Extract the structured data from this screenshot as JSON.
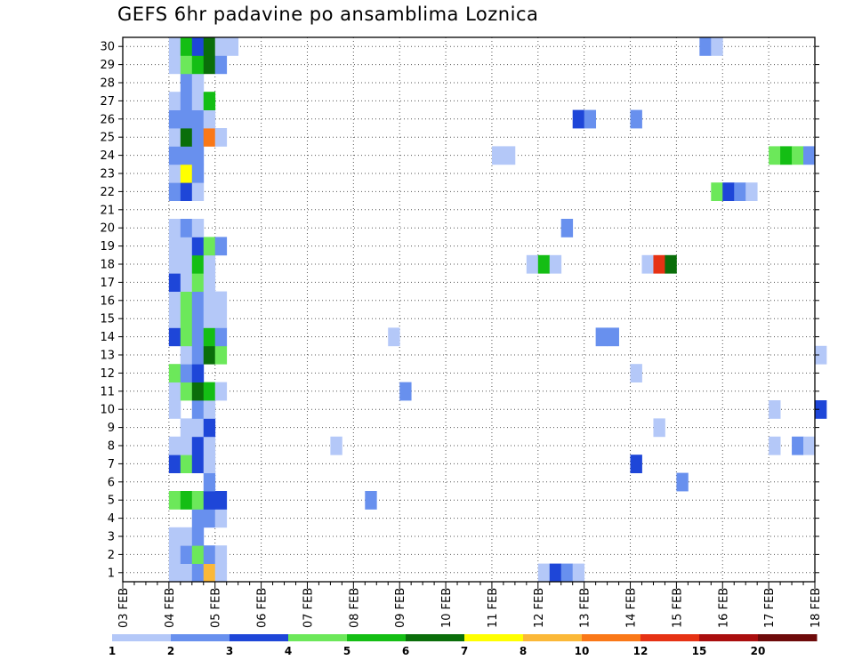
{
  "chart_data": {
    "type": "heatmap",
    "title": "GEFS 6hr padavine po ansamblima Loznica",
    "xlabel": "",
    "ylabel": "",
    "x_tick_labels": [
      "03 FEB",
      "04 FEB",
      "05 FEB",
      "06 FEB",
      "07 FEB",
      "08 FEB",
      "09 FEB",
      "10 FEB",
      "11 FEB",
      "12 FEB",
      "13 FEB",
      "14 FEB",
      "15 FEB",
      "16 FEB",
      "17 FEB",
      "18 FEB"
    ],
    "x_start": "03 FEB 00Z",
    "step_hours": 6,
    "ensemble_members": [
      1,
      2,
      3,
      4,
      5,
      6,
      7,
      8,
      9,
      10,
      11,
      12,
      13,
      14,
      15,
      16,
      17,
      18,
      19,
      20,
      21,
      22,
      23,
      24,
      25,
      26,
      27,
      28,
      29,
      30
    ],
    "grid": true,
    "colorbar": {
      "position": "bottom",
      "boundaries": [
        "1",
        "2",
        "3",
        "4",
        "5",
        "6",
        "7",
        "8",
        "10",
        "12",
        "15",
        "20"
      ],
      "colors": [
        "#b4c8f8",
        "#6890ee",
        "#1e46d8",
        "#6ce85a",
        "#14be14",
        "#0a6e0a",
        "#ffff00",
        "#fbb838",
        "#fa7818",
        "#e63214",
        "#aa0e0e",
        "#6e0a0a"
      ]
    },
    "cells": [
      [
        1,
        4,
        1
      ],
      [
        1,
        5,
        1
      ],
      [
        1,
        6,
        2
      ],
      [
        1,
        7,
        8
      ],
      [
        1,
        8,
        1
      ],
      [
        1,
        36,
        1
      ],
      [
        1,
        37,
        3
      ],
      [
        1,
        38,
        2
      ],
      [
        1,
        39,
        1
      ],
      [
        2,
        4,
        1
      ],
      [
        2,
        5,
        2
      ],
      [
        2,
        6,
        4
      ],
      [
        2,
        7,
        2
      ],
      [
        2,
        8,
        1
      ],
      [
        3,
        4,
        1
      ],
      [
        3,
        5,
        1
      ],
      [
        3,
        6,
        2
      ],
      [
        4,
        6,
        2
      ],
      [
        4,
        7,
        2
      ],
      [
        4,
        8,
        1
      ],
      [
        5,
        4,
        4
      ],
      [
        5,
        5,
        5
      ],
      [
        5,
        6,
        4
      ],
      [
        5,
        7,
        3
      ],
      [
        5,
        8,
        3
      ],
      [
        5,
        21,
        2
      ],
      [
        6,
        7,
        2
      ],
      [
        6,
        48,
        2
      ],
      [
        7,
        4,
        3
      ],
      [
        7,
        5,
        4
      ],
      [
        7,
        6,
        3
      ],
      [
        7,
        7,
        1
      ],
      [
        7,
        44,
        3
      ],
      [
        8,
        4,
        1
      ],
      [
        8,
        5,
        1
      ],
      [
        8,
        6,
        3
      ],
      [
        8,
        7,
        1
      ],
      [
        8,
        18,
        1
      ],
      [
        8,
        56,
        1
      ],
      [
        8,
        58,
        2
      ],
      [
        8,
        59,
        1
      ],
      [
        9,
        5,
        1
      ],
      [
        9,
        6,
        1
      ],
      [
        9,
        7,
        3
      ],
      [
        9,
        46,
        1
      ],
      [
        10,
        4,
        1
      ],
      [
        10,
        6,
        2
      ],
      [
        10,
        7,
        1
      ],
      [
        10,
        56,
        1
      ],
      [
        10,
        60,
        3
      ],
      [
        11,
        4,
        1
      ],
      [
        11,
        5,
        4
      ],
      [
        11,
        6,
        6
      ],
      [
        11,
        7,
        5
      ],
      [
        11,
        8,
        1
      ],
      [
        11,
        24,
        2
      ],
      [
        12,
        4,
        4
      ],
      [
        12,
        5,
        2
      ],
      [
        12,
        6,
        3
      ],
      [
        12,
        44,
        1
      ],
      [
        13,
        5,
        1
      ],
      [
        13,
        6,
        2
      ],
      [
        13,
        7,
        6
      ],
      [
        13,
        8,
        4
      ],
      [
        13,
        60,
        1
      ],
      [
        14,
        4,
        3
      ],
      [
        14,
        5,
        4
      ],
      [
        14,
        6,
        2
      ],
      [
        14,
        7,
        5
      ],
      [
        14,
        8,
        2
      ],
      [
        14,
        23,
        1
      ],
      [
        14,
        41,
        2
      ],
      [
        14,
        42,
        2
      ],
      [
        15,
        4,
        1
      ],
      [
        15,
        5,
        4
      ],
      [
        15,
        6,
        2
      ],
      [
        15,
        7,
        1
      ],
      [
        15,
        8,
        1
      ],
      [
        16,
        4,
        1
      ],
      [
        16,
        5,
        4
      ],
      [
        16,
        6,
        2
      ],
      [
        16,
        7,
        1
      ],
      [
        16,
        8,
        1
      ],
      [
        17,
        4,
        3
      ],
      [
        17,
        5,
        1
      ],
      [
        17,
        6,
        4
      ],
      [
        17,
        7,
        1
      ],
      [
        18,
        4,
        1
      ],
      [
        18,
        5,
        1
      ],
      [
        18,
        6,
        5
      ],
      [
        18,
        7,
        1
      ],
      [
        18,
        35,
        1
      ],
      [
        18,
        36,
        5
      ],
      [
        18,
        37,
        1
      ],
      [
        18,
        45,
        1
      ],
      [
        18,
        46,
        10
      ],
      [
        18,
        47,
        6
      ],
      [
        19,
        4,
        1
      ],
      [
        19,
        5,
        1
      ],
      [
        19,
        6,
        3
      ],
      [
        19,
        7,
        4
      ],
      [
        19,
        8,
        2
      ],
      [
        20,
        4,
        1
      ],
      [
        20,
        5,
        2
      ],
      [
        20,
        6,
        1
      ],
      [
        20,
        38,
        2
      ],
      [
        22,
        4,
        2
      ],
      [
        22,
        5,
        3
      ],
      [
        22,
        6,
        1
      ],
      [
        22,
        51,
        4
      ],
      [
        22,
        52,
        3
      ],
      [
        22,
        53,
        2
      ],
      [
        22,
        54,
        1
      ],
      [
        23,
        4,
        1
      ],
      [
        23,
        5,
        7
      ],
      [
        23,
        6,
        2
      ],
      [
        24,
        4,
        2
      ],
      [
        24,
        5,
        2
      ],
      [
        24,
        6,
        2
      ],
      [
        24,
        32,
        1
      ],
      [
        24,
        33,
        1
      ],
      [
        24,
        56,
        4
      ],
      [
        24,
        57,
        5
      ],
      [
        24,
        58,
        4
      ],
      [
        24,
        59,
        2
      ],
      [
        25,
        4,
        1
      ],
      [
        25,
        5,
        6
      ],
      [
        25,
        6,
        2
      ],
      [
        25,
        7,
        9
      ],
      [
        25,
        8,
        1
      ],
      [
        26,
        4,
        2
      ],
      [
        26,
        5,
        2
      ],
      [
        26,
        6,
        2
      ],
      [
        26,
        7,
        1
      ],
      [
        26,
        39,
        3
      ],
      [
        26,
        40,
        2
      ],
      [
        26,
        44,
        2
      ],
      [
        27,
        4,
        1
      ],
      [
        27,
        5,
        2
      ],
      [
        27,
        6,
        1
      ],
      [
        27,
        7,
        5
      ],
      [
        28,
        5,
        2
      ],
      [
        28,
        6,
        1
      ],
      [
        29,
        4,
        1
      ],
      [
        29,
        5,
        4
      ],
      [
        29,
        6,
        5
      ],
      [
        29,
        7,
        6
      ],
      [
        29,
        8,
        2
      ],
      [
        30,
        4,
        1
      ],
      [
        30,
        5,
        5
      ],
      [
        30,
        6,
        3
      ],
      [
        30,
        7,
        6
      ],
      [
        30,
        8,
        1
      ],
      [
        30,
        9,
        1
      ],
      [
        30,
        50,
        2
      ],
      [
        30,
        51,
        1
      ]
    ]
  }
}
